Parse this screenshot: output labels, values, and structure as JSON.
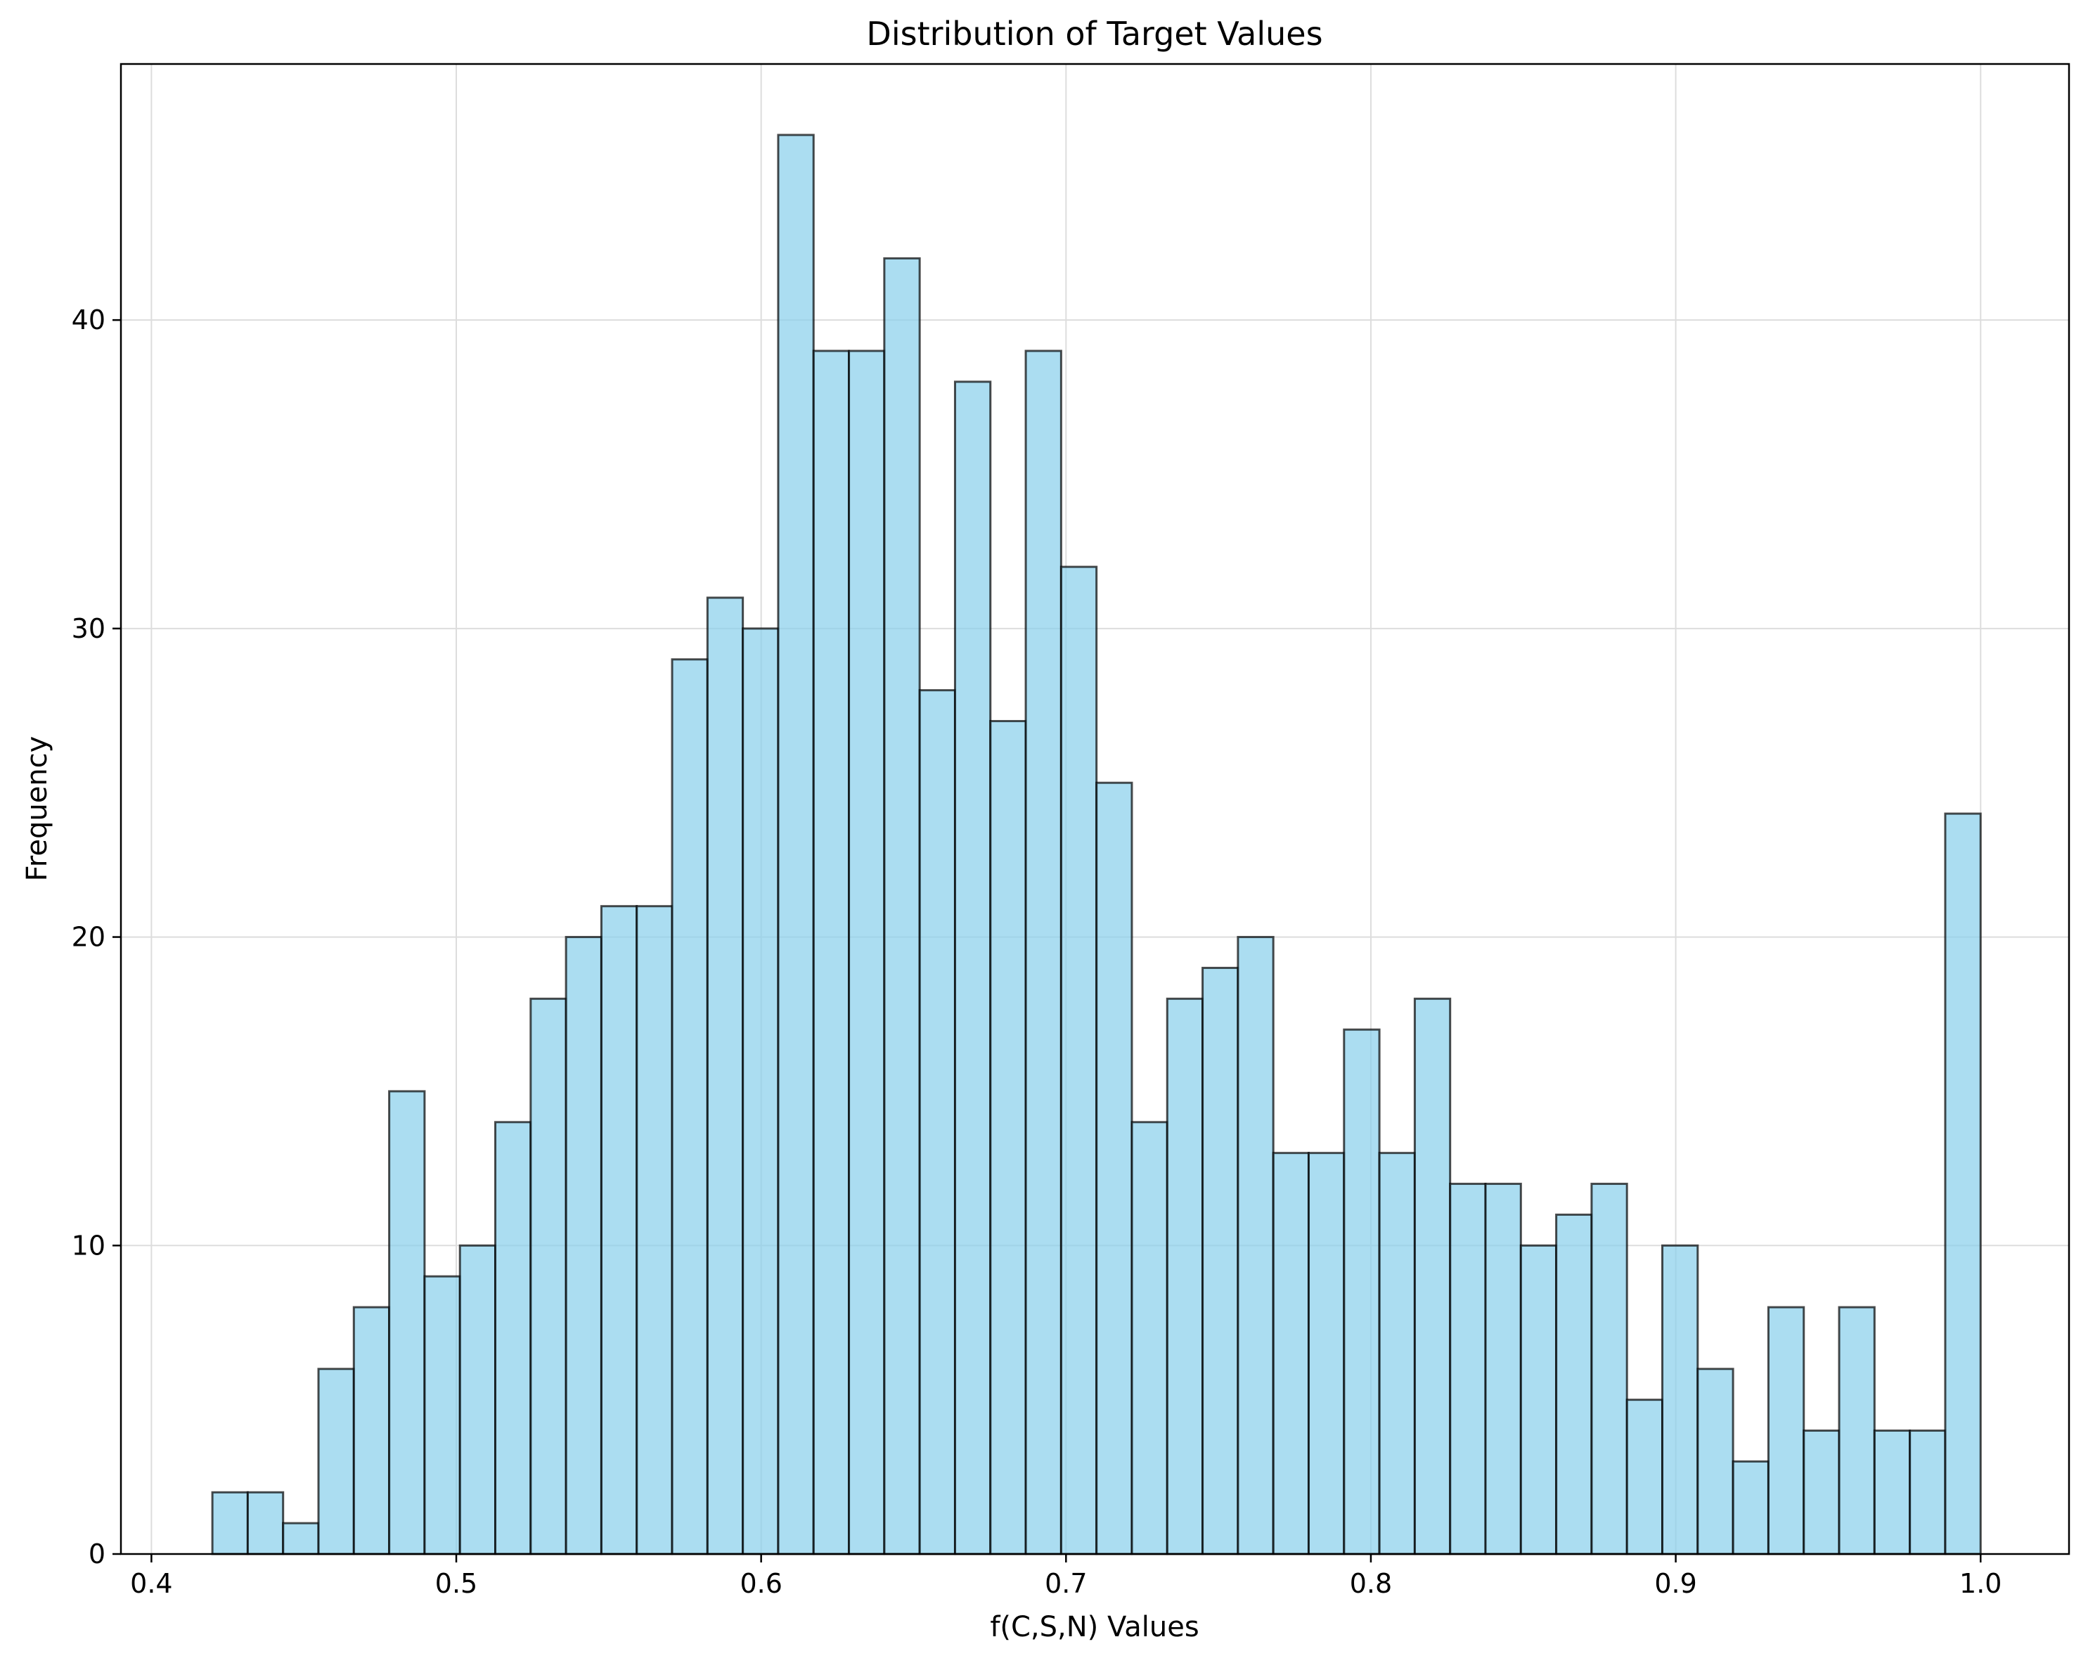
{
  "chart_data": {
    "type": "bar",
    "subtype": "histogram",
    "title": "Distribution of Target Values",
    "xlabel": "f(C,S,N) Values",
    "ylabel": "Frequency",
    "xlim": [
      0.39,
      1.029
    ],
    "ylim": [
      0,
      48.3
    ],
    "x_ticks": [
      0.4,
      0.5,
      0.6,
      0.7,
      0.8,
      0.9,
      1.0
    ],
    "x_tick_labels": [
      "0.4",
      "0.5",
      "0.6",
      "0.7",
      "0.8",
      "0.9",
      "1.0"
    ],
    "y_ticks": [
      0,
      10,
      20,
      30,
      40
    ],
    "y_tick_labels": [
      "0",
      "10",
      "20",
      "30",
      "40"
    ],
    "grid": true,
    "legend": "none",
    "bin_range": [
      0.42,
      1.0
    ],
    "bin_count": 50,
    "values": [
      2,
      2,
      1,
      6,
      8,
      15,
      9,
      10,
      14,
      18,
      20,
      21,
      21,
      29,
      31,
      30,
      46,
      39,
      39,
      42,
      28,
      38,
      27,
      39,
      32,
      25,
      14,
      18,
      19,
      20,
      13,
      13,
      17,
      13,
      18,
      12,
      12,
      10,
      11,
      12,
      5,
      10,
      6,
      3,
      8,
      4,
      8,
      4,
      4,
      24
    ],
    "colors": {
      "bar_fill": "#87ceeb",
      "bar_fill_opacity": 0.7,
      "bar_edge": "#000000",
      "grid": "#dddddd"
    }
  }
}
